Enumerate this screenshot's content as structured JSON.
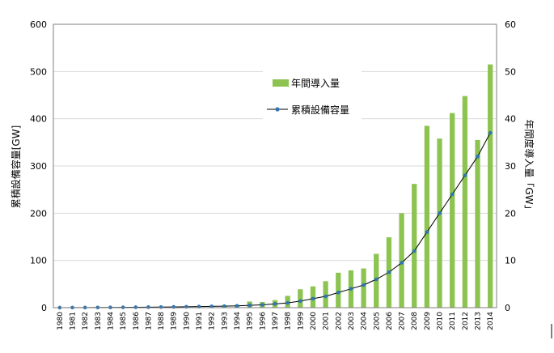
{
  "chart_data": {
    "type": "bar+line",
    "categories": [
      "1980",
      "1981",
      "1982",
      "1983",
      "1984",
      "1985",
      "1986",
      "1987",
      "1988",
      "1989",
      "1990",
      "1991",
      "1992",
      "1993",
      "1994",
      "1995",
      "1996",
      "1997",
      "1998",
      "1999",
      "2000",
      "2001",
      "2002",
      "2003",
      "2004",
      "2005",
      "2006",
      "2007",
      "2008",
      "2009",
      "2010",
      "2011",
      "2012",
      "2013",
      "2014"
    ],
    "series": [
      {
        "name": "年間導入量",
        "kind": "bar",
        "axis": "right",
        "color": "#8dc350",
        "values": [
          0.01,
          0.01,
          0.02,
          0.03,
          0.05,
          0.08,
          0.1,
          0.12,
          0.15,
          0.2,
          0.25,
          0.3,
          0.4,
          0.5,
          0.6,
          1.3,
          1.2,
          1.6,
          2.5,
          3.9,
          4.5,
          5.6,
          7.4,
          7.9,
          8.3,
          11.4,
          14.9,
          20.0,
          26.2,
          38.5,
          35.8,
          41.2,
          44.8,
          35.5,
          51.5
        ]
      },
      {
        "name": "累積設備容量",
        "kind": "line",
        "axis": "left",
        "color": "#2e75b6",
        "values": [
          0.1,
          0.2,
          0.3,
          0.4,
          0.5,
          0.7,
          0.9,
          1.1,
          1.3,
          1.6,
          1.9,
          2.3,
          2.7,
          3.2,
          3.8,
          5,
          6,
          8,
          10,
          14,
          19,
          24,
          32,
          40,
          48,
          60,
          75,
          95,
          120,
          160,
          200,
          240,
          280,
          320,
          370
        ]
      }
    ],
    "y_left": {
      "label": "累積設備容量[GW]",
      "ticks": [
        "0",
        "100",
        "200",
        "300",
        "400",
        "500",
        "600"
      ],
      "lim": [
        0,
        600
      ]
    },
    "y_right": {
      "label": "年間度導入量「GW」",
      "ticks": [
        "0",
        "10",
        "20",
        "30",
        "40",
        "50",
        "60"
      ],
      "lim": [
        0,
        60
      ]
    },
    "legend_position": "upper-center",
    "grid": true
  }
}
